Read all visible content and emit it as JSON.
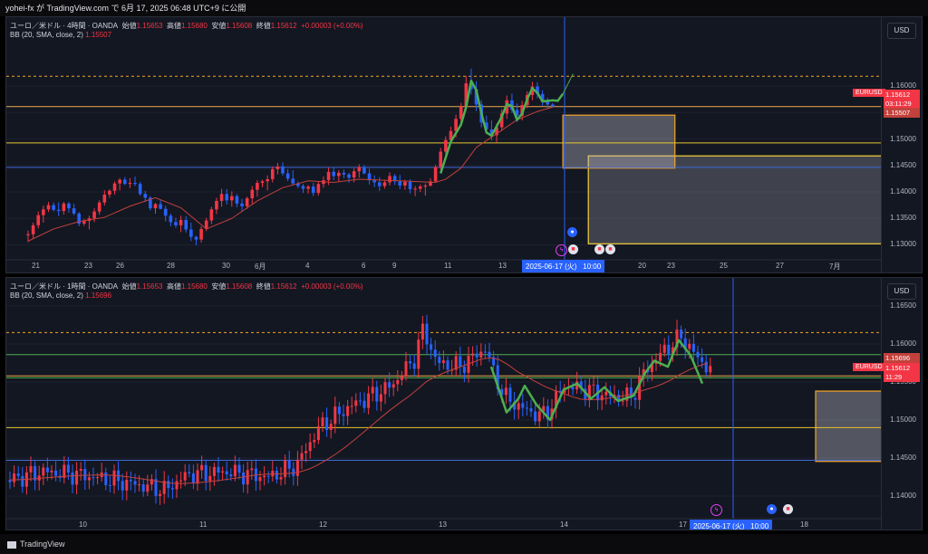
{
  "header": {
    "text": "yohei-fx が TradingView.com で 6月 17, 2025 06:48 UTC+9 に公開"
  },
  "footer": {
    "brand": "TradingView"
  },
  "colors": {
    "up": "#f23645",
    "down": "#2962ff",
    "bb": "#c2413c",
    "green": "#4caf50"
  },
  "panel1": {
    "legend_main_prefix": "ユーロ／米ドル · 4時間 · OANDA",
    "o_label": "始値",
    "o": "1.15653",
    "h_label": "高値",
    "h": "1.15680",
    "l_label": "安値",
    "l": "1.15608",
    "c_label": "終値",
    "c": "1.15612",
    "chg": "+0.00003 (+0.00%)",
    "bb_label": "BB (20, SMA, close, 2)",
    "bb_val": "1.15507",
    "currency": "USD",
    "price_ticks": [
      "1.16000",
      "1.15500",
      "1.15000",
      "1.14500",
      "1.14000",
      "1.13500",
      "1.13000"
    ],
    "time_ticks": [
      "21",
      "23",
      "26",
      "28",
      "30",
      "6月",
      "4",
      "6",
      "9",
      "11",
      "13",
      "20",
      "23",
      "25",
      "27",
      "7月"
    ],
    "symbol": "EURUSD",
    "last_price": "1.15612",
    "countdown": "03:11:29",
    "bb_tag": "1.15507",
    "crosshair_date": "2025-06-17 (火)",
    "crosshair_time": "10:00",
    "candles": [
      [
        1.1318,
        1.1327,
        1.1305,
        1.132
      ],
      [
        1.132,
        1.1342,
        1.1312,
        1.1337
      ],
      [
        1.1337,
        1.1363,
        1.1331,
        1.1356
      ],
      [
        1.1356,
        1.1374,
        1.1342,
        1.1367
      ],
      [
        1.1367,
        1.1381,
        1.1362,
        1.1375
      ],
      [
        1.1375,
        1.138,
        1.1363,
        1.1366
      ],
      [
        1.1366,
        1.138,
        1.1354,
        1.1364
      ],
      [
        1.1364,
        1.1381,
        1.1357,
        1.1378
      ],
      [
        1.1378,
        1.1381,
        1.1361,
        1.1369
      ],
      [
        1.1369,
        1.1378,
        1.1356,
        1.1359
      ],
      [
        1.1359,
        1.1362,
        1.1335,
        1.134
      ],
      [
        1.134,
        1.1349,
        1.1336,
        1.1345
      ],
      [
        1.1345,
        1.1355,
        1.1329,
        1.135
      ],
      [
        1.135,
        1.1369,
        1.1343,
        1.1363
      ],
      [
        1.1363,
        1.1384,
        1.1357,
        1.138
      ],
      [
        1.138,
        1.1403,
        1.1374,
        1.1395
      ],
      [
        1.1395,
        1.1405,
        1.1389,
        1.1402
      ],
      [
        1.1402,
        1.142,
        1.1395,
        1.1416
      ],
      [
        1.1416,
        1.1426,
        1.1403,
        1.1423
      ],
      [
        1.1423,
        1.1428,
        1.1413,
        1.1415
      ],
      [
        1.1415,
        1.1426,
        1.1407,
        1.1417
      ],
      [
        1.1417,
        1.1429,
        1.1411,
        1.1415
      ],
      [
        1.1415,
        1.1419,
        1.1393,
        1.1396
      ],
      [
        1.1396,
        1.1402,
        1.1381,
        1.1389
      ],
      [
        1.1389,
        1.1392,
        1.1365,
        1.1369
      ],
      [
        1.1369,
        1.1379,
        1.1359,
        1.1377
      ],
      [
        1.1377,
        1.1384,
        1.1367,
        1.1368
      ],
      [
        1.1368,
        1.1374,
        1.1344,
        1.1355
      ],
      [
        1.1355,
        1.1359,
        1.1335,
        1.1343
      ],
      [
        1.1343,
        1.1351,
        1.1332,
        1.1337
      ],
      [
        1.1337,
        1.1355,
        1.1324,
        1.1347
      ],
      [
        1.1347,
        1.1354,
        1.1323,
        1.1329
      ],
      [
        1.1329,
        1.1342,
        1.1307,
        1.1315
      ],
      [
        1.1315,
        1.1317,
        1.1299,
        1.131
      ],
      [
        1.131,
        1.1335,
        1.1304,
        1.133
      ],
      [
        1.133,
        1.1351,
        1.1326,
        1.1346
      ],
      [
        1.1346,
        1.1372,
        1.1339,
        1.1367
      ],
      [
        1.1367,
        1.1389,
        1.1358,
        1.1383
      ],
      [
        1.1383,
        1.1406,
        1.1372,
        1.1396
      ],
      [
        1.1396,
        1.1405,
        1.1376,
        1.1384
      ],
      [
        1.1384,
        1.1401,
        1.1372,
        1.1392
      ],
      [
        1.1392,
        1.1396,
        1.1371,
        1.1378
      ],
      [
        1.1378,
        1.1387,
        1.1363,
        1.1373
      ],
      [
        1.1373,
        1.1391,
        1.1368,
        1.1388
      ],
      [
        1.1388,
        1.1411,
        1.1377,
        1.1404
      ],
      [
        1.1404,
        1.1422,
        1.1391,
        1.1417
      ],
      [
        1.1417,
        1.1423,
        1.1409,
        1.142
      ],
      [
        1.142,
        1.1431,
        1.1403,
        1.1424
      ],
      [
        1.1424,
        1.1448,
        1.1418,
        1.1443
      ],
      [
        1.1443,
        1.1455,
        1.1433,
        1.1448
      ],
      [
        1.1448,
        1.1456,
        1.1431,
        1.1435
      ],
      [
        1.1435,
        1.1443,
        1.142,
        1.1425
      ],
      [
        1.1425,
        1.1441,
        1.1412,
        1.1416
      ],
      [
        1.1416,
        1.142,
        1.1407,
        1.1411
      ],
      [
        1.1411,
        1.1415,
        1.1398,
        1.1406
      ],
      [
        1.1406,
        1.1413,
        1.1397,
        1.141
      ],
      [
        1.141,
        1.1417,
        1.1392,
        1.1398
      ],
      [
        1.1398,
        1.1419,
        1.1393,
        1.1415
      ],
      [
        1.1415,
        1.1429,
        1.1408,
        1.1422
      ],
      [
        1.1422,
        1.1446,
        1.1413,
        1.1438
      ],
      [
        1.1438,
        1.1446,
        1.1422,
        1.143
      ],
      [
        1.143,
        1.1441,
        1.1419,
        1.1436
      ],
      [
        1.1436,
        1.1442,
        1.1426,
        1.1433
      ],
      [
        1.1433,
        1.1436,
        1.1417,
        1.1427
      ],
      [
        1.1427,
        1.1445,
        1.1418,
        1.1439
      ],
      [
        1.1439,
        1.1452,
        1.1427,
        1.1447
      ],
      [
        1.1447,
        1.1451,
        1.1433,
        1.1435
      ],
      [
        1.1435,
        1.1444,
        1.1414,
        1.1422
      ],
      [
        1.1422,
        1.1431,
        1.1409,
        1.1418
      ],
      [
        1.1418,
        1.1428,
        1.1402,
        1.1411
      ],
      [
        1.1411,
        1.1423,
        1.1406,
        1.1418
      ],
      [
        1.1418,
        1.1437,
        1.1412,
        1.143
      ],
      [
        1.143,
        1.1434,
        1.1413,
        1.142
      ],
      [
        1.142,
        1.1432,
        1.1405,
        1.1412
      ],
      [
        1.1412,
        1.1423,
        1.1404,
        1.1419
      ],
      [
        1.1419,
        1.1424,
        1.1397,
        1.1405
      ],
      [
        1.1405,
        1.1411,
        1.1392,
        1.1406
      ],
      [
        1.1406,
        1.1414,
        1.14,
        1.141
      ],
      [
        1.141,
        1.1416,
        1.1393,
        1.1412
      ],
      [
        1.1412,
        1.1426,
        1.141,
        1.142
      ],
      [
        1.142,
        1.1451,
        1.1418,
        1.1447
      ],
      [
        1.1447,
        1.1483,
        1.1442,
        1.1476
      ],
      [
        1.1476,
        1.1505,
        1.1467,
        1.1498
      ],
      [
        1.1498,
        1.1523,
        1.1491,
        1.1515
      ],
      [
        1.1515,
        1.1546,
        1.1503,
        1.1538
      ],
      [
        1.1538,
        1.1568,
        1.1527,
        1.1561
      ],
      [
        1.1561,
        1.1619,
        1.1553,
        1.1605
      ],
      [
        1.1605,
        1.1633,
        1.1584,
        1.1594
      ],
      [
        1.1594,
        1.1609,
        1.1553,
        1.1565
      ],
      [
        1.1565,
        1.1573,
        1.1522,
        1.1531
      ],
      [
        1.1531,
        1.1544,
        1.151,
        1.1518
      ],
      [
        1.1518,
        1.1535,
        1.1497,
        1.1507
      ],
      [
        1.1507,
        1.1529,
        1.1493,
        1.1522
      ],
      [
        1.1522,
        1.1556,
        1.1515,
        1.1548
      ],
      [
        1.1548,
        1.1582,
        1.1538,
        1.1573
      ],
      [
        1.1573,
        1.1586,
        1.1549,
        1.1555
      ],
      [
        1.1555,
        1.1567,
        1.1532,
        1.1544
      ],
      [
        1.1544,
        1.1572,
        1.1535,
        1.1564
      ],
      [
        1.1564,
        1.159,
        1.1558,
        1.1583
      ],
      [
        1.1583,
        1.1608,
        1.1573,
        1.1599
      ],
      [
        1.1599,
        1.1607,
        1.1577,
        1.1585
      ],
      [
        1.1585,
        1.1592,
        1.1563,
        1.157
      ],
      [
        1.157,
        1.1578,
        1.1558,
        1.1565
      ],
      [
        1.1565,
        1.1568,
        1.1561,
        1.1561
      ]
    ],
    "bb": [
      [
        0,
        1.1307
      ],
      [
        5,
        1.133
      ],
      [
        10,
        1.1344
      ],
      [
        15,
        1.1352
      ],
      [
        20,
        1.1373
      ],
      [
        25,
        1.1389
      ],
      [
        30,
        1.137
      ],
      [
        35,
        1.133
      ],
      [
        40,
        1.135
      ],
      [
        45,
        1.1383
      ],
      [
        50,
        1.1408
      ],
      [
        55,
        1.1421
      ],
      [
        60,
        1.1418
      ],
      [
        65,
        1.1424
      ],
      [
        70,
        1.1422
      ],
      [
        75,
        1.142
      ],
      [
        80,
        1.1418
      ],
      [
        82,
        1.1424
      ],
      [
        85,
        1.1445
      ],
      [
        88,
        1.1484
      ],
      [
        92,
        1.151
      ],
      [
        96,
        1.1536
      ],
      [
        100,
        1.1552
      ],
      [
        103,
        1.156
      ]
    ],
    "wave": [
      [
        81,
        1.1435
      ],
      [
        83,
        1.1495
      ],
      [
        85,
        1.1527
      ],
      [
        86,
        1.156
      ],
      [
        87,
        1.161
      ],
      [
        88,
        1.1592
      ],
      [
        89,
        1.1549
      ],
      [
        90,
        1.1512
      ],
      [
        91,
        1.1506
      ],
      [
        93,
        1.1542
      ],
      [
        94,
        1.1566
      ],
      [
        95,
        1.1562
      ],
      [
        96,
        1.1536
      ],
      [
        97,
        1.1548
      ],
      [
        98,
        1.1575
      ],
      [
        99,
        1.1596
      ],
      [
        100,
        1.1587
      ],
      [
        101,
        1.1571
      ],
      [
        103,
        1.1573
      ],
      [
        104,
        1.1572
      ],
      [
        105,
        1.1585
      ],
      [
        107,
        1.1623
      ]
    ],
    "ymin": 1.1282,
    "ymax": 1.1665,
    "hlines": [
      {
        "y": 1.16185,
        "color": "#f5a524",
        "dash": true
      },
      {
        "y": 1.15612,
        "color": "#f0a74b",
        "dash": false
      },
      {
        "y": 1.14925,
        "color": "#e6c52e",
        "dash": false
      },
      {
        "y": 1.14463,
        "color": "#3f6ad8",
        "dash": false
      }
    ],
    "boxes": [
      {
        "x0": 105,
        "x1": 127,
        "y0": 1.15445,
        "y1": 1.1545,
        "top": 1.15445,
        "bottom": 1.15445,
        "stroke": "#f5a524"
      }
    ],
    "box1": {
      "i0": 105,
      "i1": 127,
      "ytop": 1.1545,
      "ybot": 1.1445,
      "stroke": "#f5a524"
    },
    "box2": {
      "i0": 110,
      "i1": 160,
      "ytop": 1.1468,
      "ybot": 1.1302,
      "stroke": "#f5d03b"
    }
  },
  "panel2": {
    "legend_main_prefix": "ユーロ／米ドル · 1時間 · OANDA",
    "o_label": "始値",
    "o": "1.15653",
    "h_label": "高値",
    "h": "1.15680",
    "l_label": "安値",
    "l": "1.15608",
    "c_label": "終値",
    "c": "1.15612",
    "chg": "+0.00003 (+0.00%)",
    "bb_label": "BB (20, SMA, close, 2)",
    "bb_val": "1.15696",
    "currency": "USD",
    "price_ticks": [
      "1.16500",
      "1.16000",
      "1.15500",
      "1.15000",
      "1.14500",
      "1.14000"
    ],
    "time_ticks": [
      "10",
      "11",
      "12",
      "13",
      "14",
      "17",
      "18"
    ],
    "symbol": "EURUSD",
    "bb_tag": "1.15696",
    "last_price": "1.15612",
    "countdown": "11:29",
    "crosshair_date": "2025-06-17 (火)",
    "crosshair_time": "10:00",
    "ymin": 1.1375,
    "ymax": 1.1663,
    "hlines": [
      {
        "y": 1.1615,
        "color": "#f5a524",
        "dash": true
      },
      {
        "y": 1.1586,
        "color": "#4caf50",
        "dash": false
      },
      {
        "y": 1.1558,
        "color": "#f0a74b",
        "dash": false
      },
      {
        "y": 1.15555,
        "color": "#4caf50",
        "dash": false
      },
      {
        "y": 1.149,
        "color": "#e6c52e",
        "dash": false
      },
      {
        "y": 1.1447,
        "color": "#3f6ad8",
        "dash": false
      }
    ],
    "box": {
      "xs": 893,
      "xe": 980,
      "ytop": 1.1538,
      "ybot": 1.14455,
      "stroke": "#f5a524"
    }
  }
}
